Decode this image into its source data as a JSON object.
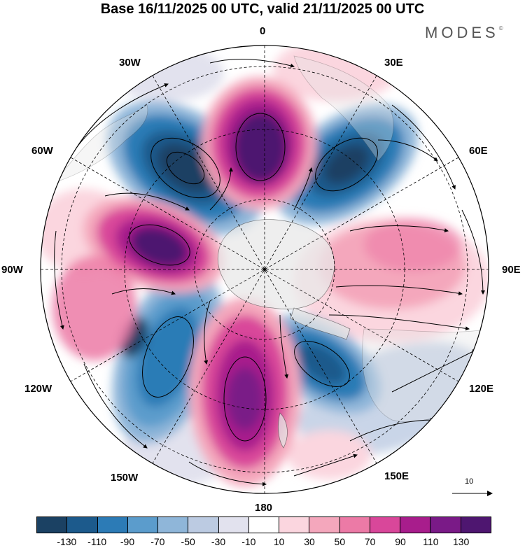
{
  "header": {
    "title": "Base 16/11/2025 00 UTC, valid 21/11/2025 00 UTC",
    "brand": "MODES",
    "brand_mark": "©"
  },
  "map": {
    "projection": "south-polar-stereographic",
    "longitude_labels": {
      "lon_0": "0",
      "lon_30e": "30E",
      "lon_60e": "60E",
      "lon_90e": "90E",
      "lon_120e": "120E",
      "lon_150e": "150E",
      "lon_180": "180",
      "lon_150w": "150W",
      "lon_120w": "120W",
      "lon_90w": "90W",
      "lon_60w": "60W",
      "lon_30w": "30W"
    },
    "reference_vector_label": "10"
  },
  "colorbar": {
    "colors": [
      "#1b4163",
      "#1c5a8c",
      "#2c7bb6",
      "#5b9ccc",
      "#8fb6d9",
      "#bccbe2",
      "#e2e2ee",
      "#ffffff",
      "#fbd6df",
      "#f4a7bc",
      "#ec7aa6",
      "#d9479a",
      "#a81d8c",
      "#7a1a87",
      "#4e1670"
    ],
    "tick_labels": [
      "-130",
      "-110",
      "-90",
      "-70",
      "-50",
      "-30",
      "-10",
      "10",
      "30",
      "50",
      "70",
      "90",
      "110",
      "130"
    ]
  },
  "colors": {
    "continent": "#e4e4e4",
    "graticule": "#000000",
    "coastline": "#555555"
  }
}
